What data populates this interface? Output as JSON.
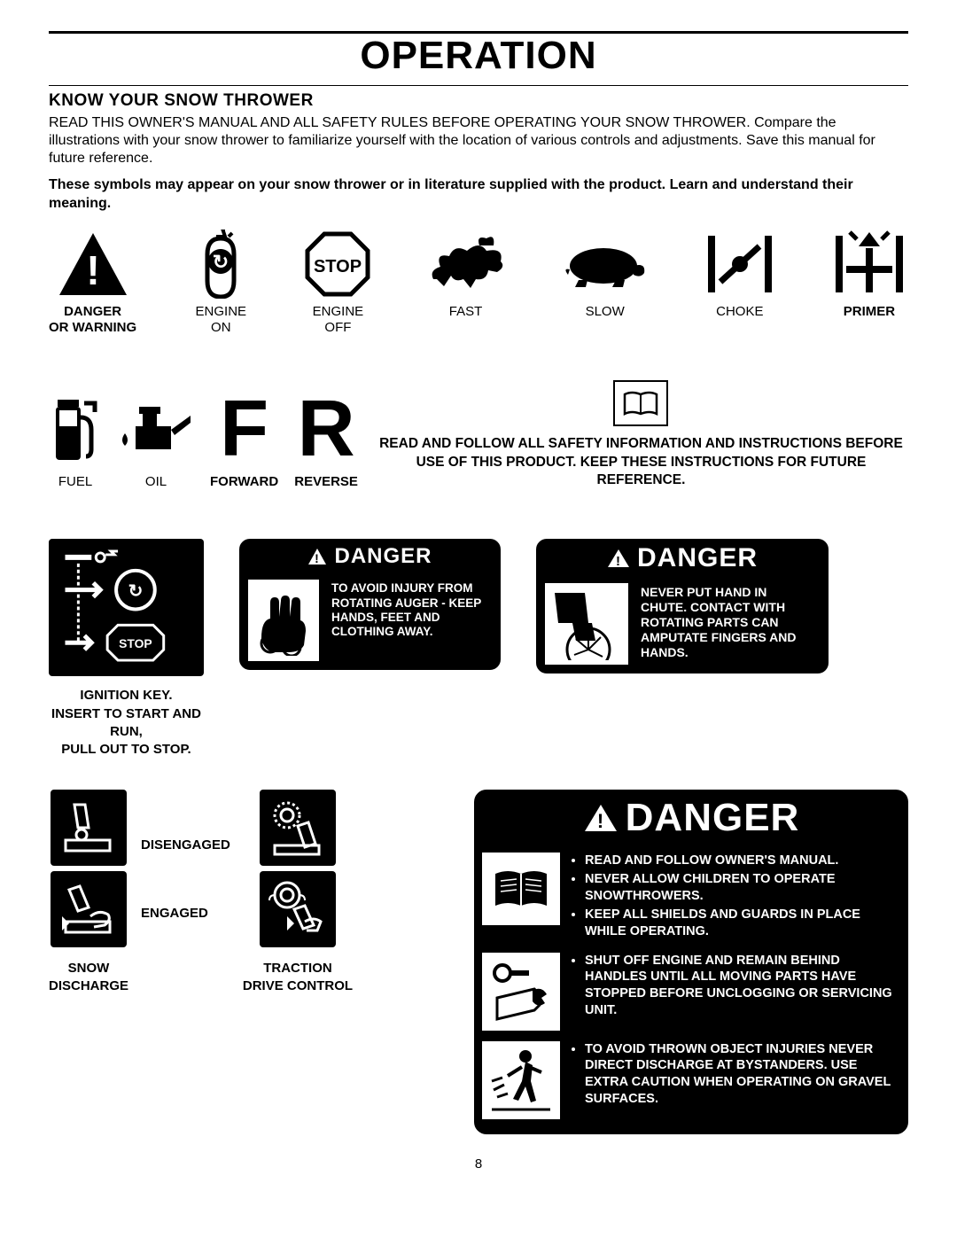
{
  "page": {
    "title": "OPERATION",
    "subtitle": "KNOW YOUR SNOW THROWER",
    "intro": "READ THIS OWNER'S MANUAL AND ALL SAFETY RULES BEFORE OPERATING YOUR SNOW THROWER. Compare the illustrations with your snow thrower to familiarize yourself with the location of various controls and adjustments. Save this manual for future reference.",
    "symbols_note": "These symbols may appear on your snow thrower or in literature supplied with the product. Learn and understand their meaning.",
    "page_number": "8"
  },
  "row1": [
    {
      "label": "DANGER\nOR WARNING",
      "bold": true
    },
    {
      "label": "ENGINE\nON",
      "bold": false
    },
    {
      "label": "ENGINE\nOFF",
      "bold": false
    },
    {
      "label": "FAST",
      "bold": false
    },
    {
      "label": "SLOW",
      "bold": false
    },
    {
      "label": "CHOKE",
      "bold": false
    },
    {
      "label": "PRIMER",
      "bold": true
    }
  ],
  "row2": {
    "fuel": "FUEL",
    "oil": "OIL",
    "forward": "FORWARD",
    "reverse": "REVERSE",
    "safety_text": "READ AND FOLLOW ALL SAFETY INFORMATION AND INSTRUCTIONS BEFORE USE OF THIS PRODUCT. KEEP THESE INSTRUCTIONS FOR FUTURE REFERENCE."
  },
  "ignition": {
    "stop_text": "STOP",
    "label": "IGNITION KEY.\nINSERT TO START AND RUN,\nPULL OUT TO STOP."
  },
  "danger_auger": {
    "header": "DANGER",
    "text": "TO AVOID INJURY FROM ROTATING AUGER - KEEP HANDS, FEET AND CLOTHING AWAY."
  },
  "danger_chute": {
    "header": "DANGER",
    "text": "NEVER PUT HAND IN CHUTE. CONTACT WITH ROTATING PARTS CAN AMPUTATE FINGERS AND HANDS."
  },
  "levers": {
    "disengaged": "DISENGAGED",
    "engaged": "ENGAGED",
    "snow_discharge": "SNOW\nDISCHARGE",
    "traction": "TRACTION\nDRIVE CONTROL"
  },
  "danger_big": {
    "header": "DANGER",
    "block1": [
      "READ AND FOLLOW OWNER'S MANUAL.",
      "NEVER ALLOW CHILDREN TO OPERATE SNOWTHROWERS.",
      "KEEP ALL SHIELDS AND GUARDS IN PLACE WHILE OPERATING."
    ],
    "block2": [
      "SHUT OFF ENGINE AND REMAIN BEHIND HANDLES UNTIL ALL MOVING PARTS HAVE STOPPED BEFORE UNCLOGGING OR SERVICING UNIT."
    ],
    "block3": [
      "TO AVOID THROWN OBJECT INJURIES NEVER DIRECT DISCHARGE AT BYSTANDERS. USE EXTRA CAUTION WHEN OPERATING ON GRAVEL SURFACES."
    ]
  },
  "stop_octagon": "STOP"
}
